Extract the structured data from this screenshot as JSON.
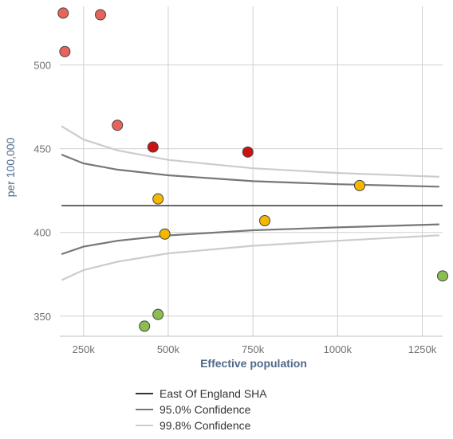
{
  "chart_data": {
    "type": "scatter",
    "title": "",
    "xlabel": "Effective population",
    "ylabel": "per 100,000",
    "xlim": [
      180000,
      1310000
    ],
    "ylim": [
      338,
      535
    ],
    "x_ticks": [
      250000,
      500000,
      750000,
      1000000,
      1250000
    ],
    "x_tick_labels": [
      "250k",
      "500k",
      "750k",
      "1000k",
      "1250k"
    ],
    "y_ticks": [
      350,
      400,
      450,
      500
    ],
    "y_tick_labels": [
      "350",
      "400",
      "450",
      "500"
    ],
    "grid": true,
    "legend_position": "bottom-left",
    "target_line": {
      "name": "East Of England SHA",
      "value": 416,
      "color": "#333333"
    },
    "confidence_limits": [
      {
        "name": "95.0% Confidence",
        "color": "#777777",
        "x": [
          185000,
          250000,
          350000,
          500000,
          750000,
          1000000,
          1300000
        ],
        "upper": [
          446.5,
          441.2,
          437.5,
          434.1,
          430.6,
          428.8,
          427.3
        ],
        "lower": [
          387.0,
          391.5,
          395.0,
          398.2,
          401.3,
          403.0,
          404.8
        ]
      },
      {
        "name": "99.8% Confidence",
        "color": "#cccccc",
        "x": [
          185000,
          250000,
          350000,
          500000,
          750000,
          1000000,
          1300000
        ],
        "upper": [
          463.5,
          455.5,
          449.0,
          443.3,
          438.3,
          435.5,
          433.2
        ],
        "lower": [
          371.5,
          377.5,
          382.5,
          387.5,
          392.0,
          395.0,
          398.3
        ]
      }
    ],
    "points": [
      {
        "x": 190000,
        "y": 531,
        "color": "#e8645a"
      },
      {
        "x": 300000,
        "y": 530,
        "color": "#e8645a"
      },
      {
        "x": 195000,
        "y": 508,
        "color": "#e8645a"
      },
      {
        "x": 350000,
        "y": 464,
        "color": "#e8645a"
      },
      {
        "x": 455000,
        "y": 451,
        "color": "#cc1111"
      },
      {
        "x": 735000,
        "y": 448,
        "color": "#cc1111"
      },
      {
        "x": 470000,
        "y": 420,
        "color": "#f5b800"
      },
      {
        "x": 1065000,
        "y": 428,
        "color": "#f5b800"
      },
      {
        "x": 785000,
        "y": 407,
        "color": "#f5b800"
      },
      {
        "x": 490000,
        "y": 399,
        "color": "#f5b800"
      },
      {
        "x": 1310000,
        "y": 374,
        "color": "#8cbd50"
      },
      {
        "x": 470000,
        "y": 351,
        "color": "#8cbd50"
      },
      {
        "x": 430000,
        "y": 344,
        "color": "#8cbd50"
      }
    ]
  }
}
